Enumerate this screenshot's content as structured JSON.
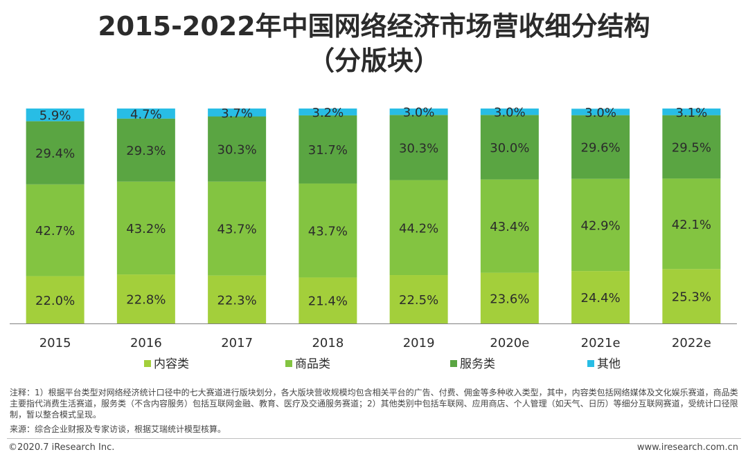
{
  "title_line1": "2015-2022年中国网络经济市场营收细分结构",
  "title_line2": "（分版块）",
  "colors": {
    "content": "#a3cf3b",
    "goods": "#83c441",
    "service": "#5aa542",
    "other": "#28bde5"
  },
  "chart_data": {
    "type": "bar",
    "stacked": true,
    "categories": [
      "2015",
      "2016",
      "2017",
      "2018",
      "2019",
      "2020e",
      "2021e",
      "2022e"
    ],
    "series": [
      {
        "name": "内容类",
        "key": "content",
        "values": [
          22.0,
          22.8,
          22.3,
          21.4,
          22.5,
          23.6,
          24.4,
          25.3
        ]
      },
      {
        "name": "商品类",
        "key": "goods",
        "values": [
          42.7,
          43.2,
          43.7,
          43.7,
          44.2,
          43.4,
          42.9,
          42.1
        ]
      },
      {
        "name": "服务类",
        "key": "service",
        "values": [
          29.4,
          29.3,
          30.3,
          31.7,
          30.3,
          30.0,
          29.6,
          29.5
        ]
      },
      {
        "name": "其他",
        "key": "other",
        "values": [
          5.9,
          4.7,
          3.7,
          3.2,
          3.0,
          3.0,
          3.0,
          3.1
        ]
      }
    ],
    "unit": "%",
    "ylim": [
      0,
      100
    ],
    "legend_position": "bottom"
  },
  "note": "注释：1）根据平台类型对网络经济统计口径中的七大赛道进行版块划分，各大版块营收规模均包含相关平台的广告、付费、佣金等多种收入类型，其中，内容类包括网络媒体及文化娱乐赛道，商品类主要指代消费生活赛道，服务类（不含内容服务）包括互联网金融、教育、医疗及交通服务赛道；2）其他类别中包括车联网、应用商店、个人管理（如天气、日历）等细分互联网赛道，受统计口径限制，暂以整合模式呈现。",
  "source": "来源：综合企业财报及专家访谈，根据艾瑞统计模型核算。",
  "copyright": "©2020.7 iResearch Inc.",
  "website": "www.iresearch.com.cn"
}
